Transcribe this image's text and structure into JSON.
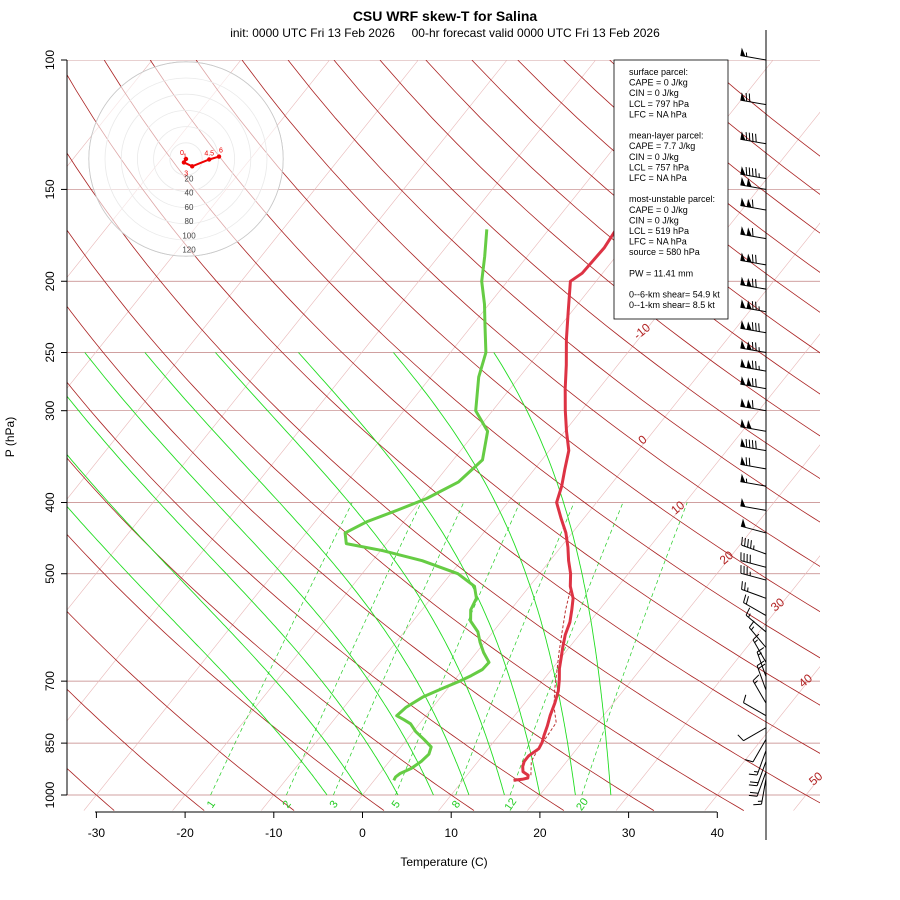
{
  "chart_data": {
    "type": "skew-t",
    "title": "CSU WRF skew-T for Salina",
    "subtitle": "init: 0000 UTC Fri 13 Feb 2026     00-hr forecast valid 0000 UTC Fri 13 Feb 2026",
    "xlabel": "Temperature (C)",
    "ylabel": "P (hPa)",
    "xlim": [
      -33,
      43
    ],
    "ylim": [
      1050,
      100
    ],
    "x_ticks": [
      -30,
      -20,
      -10,
      0,
      10,
      20,
      30,
      40
    ],
    "p_ticks": [
      100,
      150,
      200,
      250,
      300,
      400,
      500,
      700,
      850,
      1000
    ],
    "isotherm_labels": [
      -10,
      0,
      10,
      20,
      30,
      40,
      50
    ],
    "mixing_ratio_labels": [
      1,
      2,
      3,
      5,
      8,
      12,
      20
    ],
    "temperature_profile": [
      [
        955,
        15.7
      ],
      [
        952,
        16.6
      ],
      [
        948,
        17.1
      ],
      [
        940,
        16.9
      ],
      [
        930,
        16.0
      ],
      [
        915,
        15.5
      ],
      [
        900,
        15.2
      ],
      [
        885,
        15.2
      ],
      [
        865,
        15.7
      ],
      [
        848,
        15.5
      ],
      [
        830,
        15.1
      ],
      [
        805,
        14.6
      ],
      [
        780,
        14.0
      ],
      [
        750,
        13.4
      ],
      [
        722,
        12.7
      ],
      [
        697,
        11.8
      ],
      [
        673,
        10.8
      ],
      [
        650,
        10.0
      ],
      [
        628,
        9.2
      ],
      [
        605,
        8.4
      ],
      [
        582,
        7.8
      ],
      [
        560,
        6.9
      ],
      [
        540,
        6.0
      ],
      [
        520,
        4.6
      ],
      [
        500,
        3.5
      ],
      [
        480,
        2.1
      ],
      [
        460,
        0.8
      ],
      [
        440,
        -0.7
      ],
      [
        420,
        -2.6
      ],
      [
        400,
        -4.5
      ],
      [
        380,
        -5.4
      ],
      [
        360,
        -6.6
      ],
      [
        340,
        -7.8
      ],
      [
        320,
        -9.8
      ],
      [
        300,
        -11.8
      ],
      [
        280,
        -13.8
      ],
      [
        260,
        -15.8
      ],
      [
        240,
        -18.1
      ],
      [
        220,
        -20.4
      ],
      [
        200,
        -22.9
      ],
      [
        195,
        -22.3
      ],
      [
        180,
        -22.1
      ],
      [
        165,
        -22.6
      ],
      [
        150,
        -21.8
      ],
      [
        140,
        -23.2
      ],
      [
        130,
        -24.8
      ],
      [
        120,
        -26.7
      ],
      [
        110,
        -29.4
      ],
      [
        100,
        -32.4
      ]
    ],
    "parcel_trace": [
      [
        940,
        17.2
      ],
      [
        900,
        16.0
      ],
      [
        860,
        15.6
      ],
      [
        830,
        15.5
      ],
      [
        797,
        15.3
      ],
      [
        760,
        13.7
      ],
      [
        720,
        12.2
      ],
      [
        680,
        10.8
      ],
      [
        640,
        9.3
      ],
      [
        600,
        7.8
      ],
      [
        560,
        6.2
      ],
      [
        520,
        4.7
      ]
    ],
    "dewpoint_profile": [
      [
        955,
        2.2
      ],
      [
        945,
        2.1
      ],
      [
        935,
        2.3
      ],
      [
        920,
        3.1
      ],
      [
        900,
        3.6
      ],
      [
        880,
        3.8
      ],
      [
        860,
        3.4
      ],
      [
        840,
        1.9
      ],
      [
        820,
        0.3
      ],
      [
        800,
        -1.0
      ],
      [
        790,
        -2.1
      ],
      [
        780,
        -3.3
      ],
      [
        760,
        -3.0
      ],
      [
        735,
        -2.0
      ],
      [
        715,
        -0.5
      ],
      [
        700,
        0.7
      ],
      [
        688,
        1.5
      ],
      [
        675,
        2.2
      ],
      [
        660,
        2.3
      ],
      [
        640,
        0.8
      ],
      [
        620,
        -0.5
      ],
      [
        600,
        -1.7
      ],
      [
        580,
        -3.5
      ],
      [
        560,
        -4.5
      ],
      [
        540,
        -4.9
      ],
      [
        520,
        -6.2
      ],
      [
        500,
        -9.2
      ],
      [
        480,
        -14.4
      ],
      [
        465,
        -19.8
      ],
      [
        455,
        -24.5
      ],
      [
        440,
        -25.6
      ],
      [
        425,
        -24.2
      ],
      [
        410,
        -21.8
      ],
      [
        395,
        -19.5
      ],
      [
        375,
        -17.4
      ],
      [
        350,
        -16.7
      ],
      [
        320,
        -18.7
      ],
      [
        300,
        -21.9
      ],
      [
        270,
        -24.6
      ],
      [
        250,
        -26.0
      ],
      [
        230,
        -28.5
      ],
      [
        215,
        -30.5
      ],
      [
        200,
        -32.9
      ],
      [
        185,
        -34.8
      ],
      [
        170,
        -37.0
      ]
    ]
  },
  "hodograph": {
    "ring_labels": [
      "20",
      "40",
      "60",
      "80",
      "100",
      "120"
    ],
    "point_labels": [
      "0",
      "1",
      "3",
      "4.5",
      "6"
    ],
    "points_kt": [
      [
        0,
        0
      ],
      [
        -1.2,
        3.5
      ],
      [
        3.5,
        7.5
      ],
      [
        13.0,
        0.5
      ],
      [
        18.5,
        -2.5
      ]
    ]
  },
  "winds": [
    {
      "p": 100,
      "dir": 280,
      "kt": 55
    },
    {
      "p": 115,
      "dir": 280,
      "kt": 70
    },
    {
      "p": 130,
      "dir": 280,
      "kt": 90
    },
    {
      "p": 145,
      "dir": 280,
      "kt": 95
    },
    {
      "p": 150,
      "dir": 280,
      "kt": 100
    },
    {
      "p": 160,
      "dir": 280,
      "kt": 110
    },
    {
      "p": 175,
      "dir": 280,
      "kt": 110
    },
    {
      "p": 190,
      "dir": 280,
      "kt": 120
    },
    {
      "p": 205,
      "dir": 280,
      "kt": 120
    },
    {
      "p": 220,
      "dir": 280,
      "kt": 125
    },
    {
      "p": 235,
      "dir": 280,
      "kt": 130
    },
    {
      "p": 250,
      "dir": 280,
      "kt": 125
    },
    {
      "p": 265,
      "dir": 280,
      "kt": 125
    },
    {
      "p": 280,
      "dir": 280,
      "kt": 120
    },
    {
      "p": 300,
      "dir": 280,
      "kt": 110
    },
    {
      "p": 320,
      "dir": 280,
      "kt": 100
    },
    {
      "p": 340,
      "dir": 280,
      "kt": 90
    },
    {
      "p": 360,
      "dir": 280,
      "kt": 70
    },
    {
      "p": 380,
      "dir": 280,
      "kt": 55
    },
    {
      "p": 410,
      "dir": 280,
      "kt": 50
    },
    {
      "p": 440,
      "dir": 285,
      "kt": 50
    },
    {
      "p": 470,
      "dir": 290,
      "kt": 45
    },
    {
      "p": 490,
      "dir": 285,
      "kt": 40
    },
    {
      "p": 510,
      "dir": 285,
      "kt": 35
    },
    {
      "p": 540,
      "dir": 290,
      "kt": 25
    },
    {
      "p": 570,
      "dir": 300,
      "kt": 20
    },
    {
      "p": 600,
      "dir": 310,
      "kt": 15
    },
    {
      "p": 630,
      "dir": 320,
      "kt": 15
    },
    {
      "p": 660,
      "dir": 330,
      "kt": 15
    },
    {
      "p": 690,
      "dir": 340,
      "kt": 15
    },
    {
      "p": 720,
      "dir": 340,
      "kt": 20
    },
    {
      "p": 750,
      "dir": 330,
      "kt": 15
    },
    {
      "p": 780,
      "dir": 300,
      "kt": 10
    },
    {
      "p": 810,
      "dir": 240,
      "kt": 10
    },
    {
      "p": 840,
      "dir": 210,
      "kt": 10
    },
    {
      "p": 870,
      "dir": 200,
      "kt": 15
    },
    {
      "p": 900,
      "dir": 200,
      "kt": 20
    },
    {
      "p": 930,
      "dir": 200,
      "kt": 20
    },
    {
      "p": 950,
      "dir": 190,
      "kt": 15
    }
  ],
  "stats_box": [
    "surface parcel:",
    "CAPE = 0 J/kg",
    "CIN = 0 J/kg",
    "LCL = 797 hPa",
    "LFC = NA hPa",
    "",
    "mean-layer parcel:",
    "CAPE = 7.7 J/kg",
    "CIN = 0 J/kg",
    "LCL = 757 hPa",
    "LFC = NA hPa",
    "",
    "most-unstable parcel:",
    "CAPE = 0 J/kg",
    "CIN = 0 J/kg",
    "LCL = 519 hPa",
    "LFC = NA hPa",
    "source = 580 hPa",
    "",
    "PW =  11.41 mm",
    "",
    "0--6-km shear= 54.9 kt",
    "0--1-km shear= 8.5 kt"
  ],
  "colors": {
    "temperature": "#dd3344",
    "dewpoint": "#66cc44",
    "parcel": "#bb3333",
    "isotherm": "#aa2222",
    "isobar": "#c08080",
    "dry_adiabat": "#aa2222",
    "moist_adiabat": "#22dd22",
    "mixing_ratio": "#22cc22",
    "hodo_trace": "#ee0000"
  }
}
